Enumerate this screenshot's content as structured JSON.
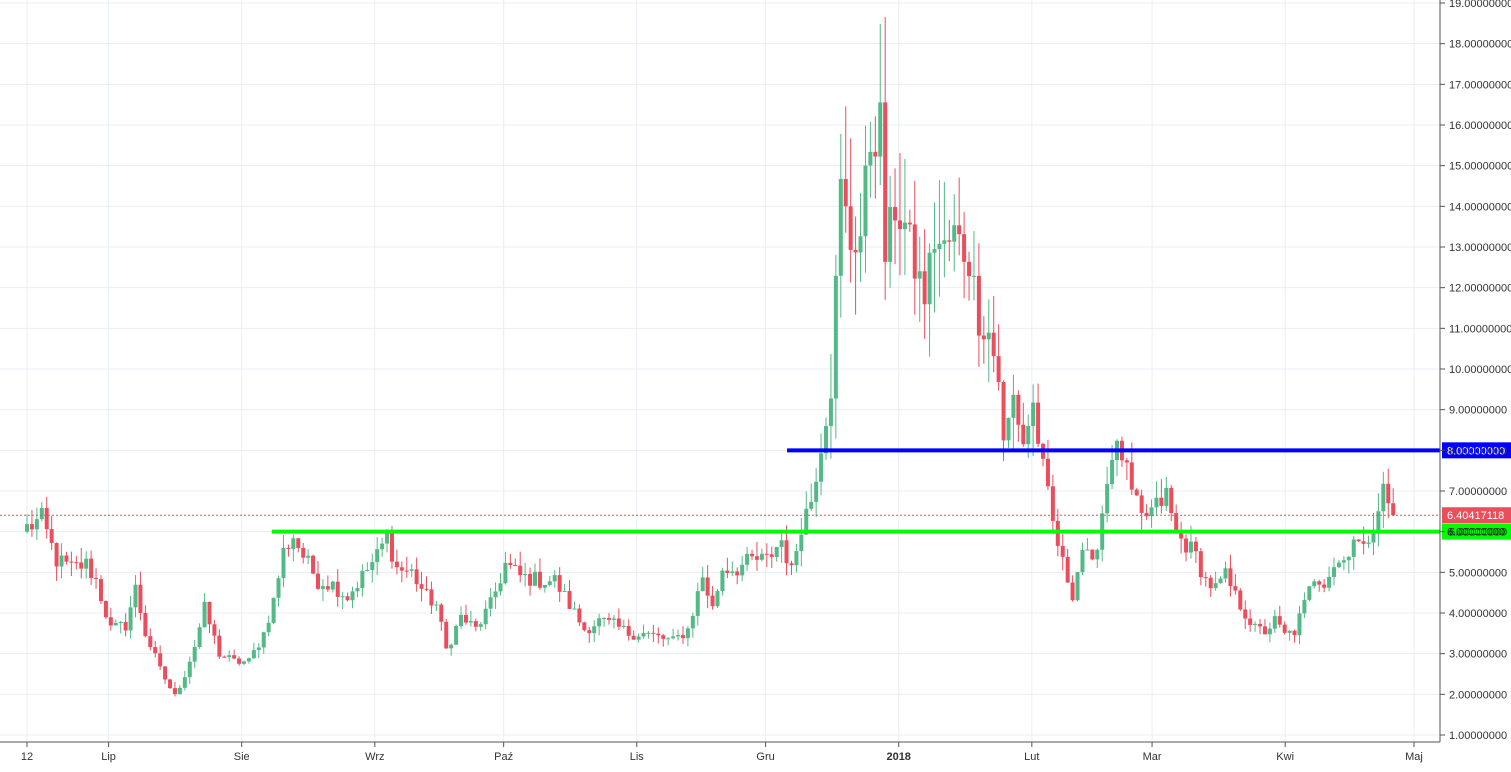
{
  "chart_data": {
    "type": "candlestick",
    "title": "",
    "xlabel": "",
    "ylabel": "",
    "ylim": [
      0.73,
      19.05
    ],
    "grid": true,
    "y_ticks": [
      "19.00000000",
      "18.00000000",
      "17.00000000",
      "16.00000000",
      "15.00000000",
      "14.00000000",
      "13.00000000",
      "12.00000000",
      "11.00000000",
      "10.00000000",
      "9.00000000",
      "8.00000000",
      "7.00000000",
      "6.00000000",
      "5.00000000",
      "4.00000000",
      "3.00000000",
      "2.00000000",
      "1.00000000"
    ],
    "x_ticks": [
      {
        "label": "12",
        "day": 0,
        "bold": false
      },
      {
        "label": "Lip",
        "day": 19,
        "bold": false
      },
      {
        "label": "Sie",
        "day": 50,
        "bold": false
      },
      {
        "label": "Wrz",
        "day": 81,
        "bold": false
      },
      {
        "label": "Paź",
        "day": 111,
        "bold": false
      },
      {
        "label": "Lis",
        "day": 142,
        "bold": false
      },
      {
        "label": "Gru",
        "day": 172,
        "bold": false
      },
      {
        "label": "2018",
        "day": 203,
        "bold": true
      },
      {
        "label": "Lut",
        "day": 234,
        "bold": false
      },
      {
        "label": "Mar",
        "day": 262,
        "bold": false
      },
      {
        "label": "Kwi",
        "day": 293,
        "bold": false
      },
      {
        "label": "Maj",
        "day": 323,
        "bold": false
      }
    ],
    "colors": {
      "up": "#53b987",
      "down": "#eb4d5c",
      "grid": "#e9eef3",
      "axis": "#555555",
      "resistance": "#0000ff",
      "support": "#00ff00",
      "last_price": "#eb4d5c"
    },
    "horizontal_lines": [
      {
        "name": "resistance",
        "value": 8.0,
        "label": "8.00000000",
        "from_day": 177,
        "color": "#0000ff"
      },
      {
        "name": "support",
        "value": 6.0,
        "label": "6.00000000",
        "from_day": 57,
        "color": "#00ff00"
      }
    ],
    "last_price": {
      "value": 6.40417118,
      "label": "6.40417118"
    },
    "keyframes": [
      [
        0,
        6.1
      ],
      [
        3,
        6.3
      ],
      [
        6,
        5.3
      ],
      [
        9,
        5.1
      ],
      [
        12,
        5.2
      ],
      [
        14,
        4.8
      ],
      [
        17,
        3.6
      ],
      [
        20,
        3.7
      ],
      [
        22,
        4.6
      ],
      [
        24,
        3.5
      ],
      [
        27,
        2.6
      ],
      [
        30,
        1.95
      ],
      [
        32,
        2.5
      ],
      [
        34,
        3.2
      ],
      [
        36,
        4.1
      ],
      [
        39,
        3.0
      ],
      [
        42,
        2.8
      ],
      [
        45,
        2.8
      ],
      [
        48,
        3.5
      ],
      [
        50,
        4.3
      ],
      [
        52,
        5.5
      ],
      [
        54,
        5.9
      ],
      [
        56,
        5.4
      ],
      [
        59,
        4.8
      ],
      [
        62,
        4.7
      ],
      [
        65,
        4.4
      ],
      [
        68,
        4.9
      ],
      [
        71,
        5.4
      ],
      [
        73,
        5.9
      ],
      [
        75,
        5.1
      ],
      [
        78,
        5.0
      ],
      [
        81,
        4.4
      ],
      [
        83,
        4.2
      ],
      [
        85,
        3.1
      ],
      [
        88,
        3.9
      ],
      [
        91,
        3.6
      ],
      [
        94,
        4.2
      ],
      [
        97,
        5.2
      ],
      [
        100,
        4.9
      ],
      [
        104,
        4.8
      ],
      [
        107,
        4.8
      ],
      [
        110,
        4.2
      ],
      [
        113,
        3.6
      ],
      [
        116,
        3.8
      ],
      [
        119,
        3.7
      ],
      [
        122,
        3.5
      ],
      [
        125,
        3.5
      ],
      [
        128,
        3.4
      ],
      [
        131,
        3.3
      ],
      [
        134,
        3.6
      ],
      [
        137,
        4.9
      ],
      [
        139,
        4.1
      ],
      [
        141,
        5.1
      ],
      [
        144,
        5.1
      ],
      [
        147,
        5.3
      ],
      [
        150,
        5.3
      ],
      [
        153,
        5.8
      ],
      [
        155,
        5.0
      ],
      [
        157,
        6.2
      ],
      [
        159,
        6.8
      ],
      [
        161,
        8.2
      ],
      [
        163,
        9.6
      ],
      [
        165,
        14.4
      ],
      [
        167,
        13.1
      ],
      [
        169,
        13.3
      ],
      [
        171,
        15.6
      ],
      [
        173,
        16.0
      ],
      [
        174,
        12.8
      ],
      [
        176,
        14.0
      ],
      [
        178,
        13.5
      ],
      [
        180,
        12.5
      ],
      [
        182,
        11.8
      ],
      [
        184,
        13.2
      ],
      [
        186,
        12.9
      ],
      [
        188,
        13.3
      ],
      [
        191,
        12.7
      ],
      [
        193,
        11.3
      ],
      [
        195,
        10.9
      ],
      [
        197,
        9.8
      ],
      [
        198,
        8.1
      ],
      [
        200,
        9.3
      ],
      [
        202,
        8.2
      ],
      [
        204,
        9.1
      ],
      [
        206,
        7.5
      ],
      [
        208,
        6.2
      ],
      [
        210,
        5.2
      ],
      [
        212,
        4.5
      ],
      [
        214,
        5.6
      ],
      [
        216,
        5.1
      ],
      [
        218,
        6.5
      ],
      [
        220,
        8.0
      ],
      [
        222,
        7.9
      ],
      [
        224,
        6.9
      ],
      [
        226,
        6.3
      ],
      [
        229,
        6.6
      ],
      [
        231,
        6.9
      ],
      [
        233,
        5.9
      ],
      [
        235,
        5.7
      ],
      [
        237,
        5.4
      ],
      [
        239,
        4.8
      ],
      [
        241,
        4.6
      ],
      [
        243,
        4.9
      ],
      [
        245,
        4.4
      ],
      [
        247,
        4.0
      ],
      [
        249,
        3.6
      ],
      [
        251,
        3.55
      ],
      [
        253,
        3.8
      ],
      [
        255,
        3.45
      ],
      [
        257,
        3.55
      ],
      [
        259,
        4.2
      ],
      [
        261,
        4.9
      ],
      [
        263,
        4.8
      ],
      [
        265,
        5.2
      ],
      [
        267,
        5.3
      ],
      [
        269,
        5.9
      ],
      [
        271,
        5.5
      ],
      [
        273,
        6.3
      ],
      [
        275,
        7.0
      ],
      [
        277,
        6.4
      ]
    ]
  }
}
